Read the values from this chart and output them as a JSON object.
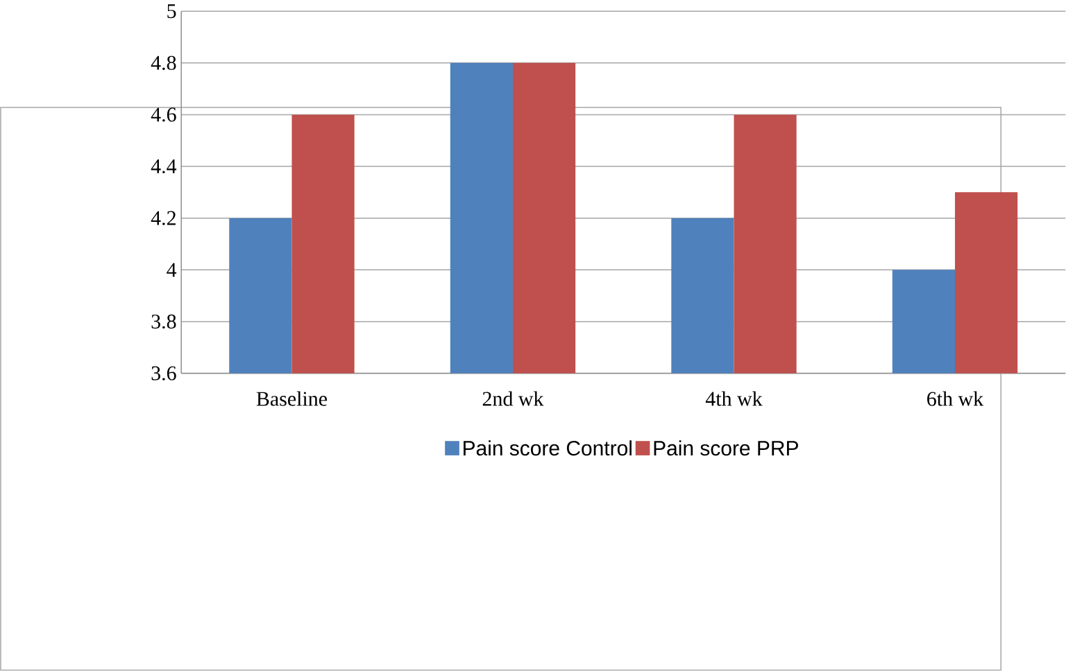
{
  "chart_data": {
    "type": "bar",
    "categories": [
      "Baseline",
      "2nd wk",
      "4th wk",
      "6th wk"
    ],
    "series": [
      {
        "name": "Pain score Control",
        "color": "#4f81bd",
        "values": [
          4.2,
          4.8,
          4.2,
          4.0
        ]
      },
      {
        "name": "Pain score PRP",
        "color": "#c0504d",
        "values": [
          4.6,
          4.8,
          4.6,
          4.3
        ]
      }
    ],
    "ylim": [
      3.6,
      5
    ],
    "yticks": [
      3.6,
      3.8,
      4,
      4.2,
      4.4,
      4.6,
      4.8,
      5
    ],
    "grid": "y",
    "legend": "bottom"
  }
}
